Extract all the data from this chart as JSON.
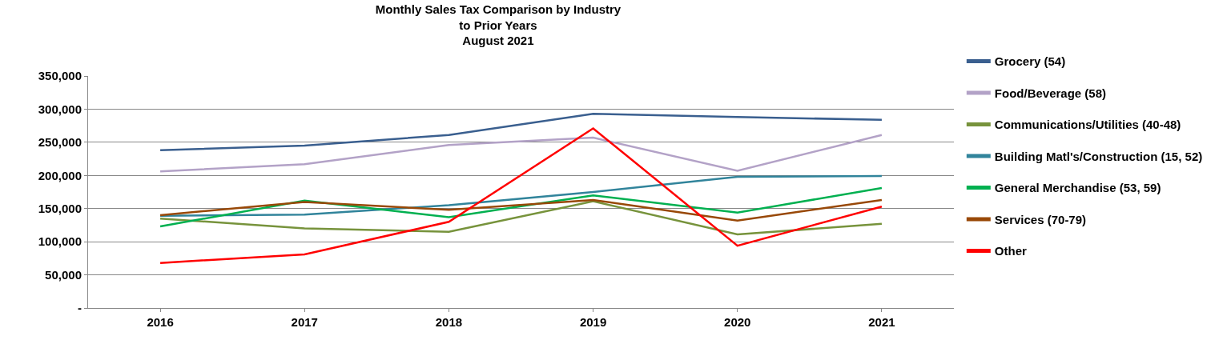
{
  "chart_data": {
    "type": "line",
    "title": "Monthly Sales Tax Comparison by Industry\nto Prior Years\nAugust 2021",
    "categories": [
      "2016",
      "2017",
      "2018",
      "2019",
      "2020",
      "2021"
    ],
    "series": [
      {
        "name": "Grocery (54)",
        "color": "#3a5f8f",
        "values": [
          238000,
          245000,
          261000,
          293000,
          288000,
          284000
        ]
      },
      {
        "name": "Food/Beverage (58)",
        "color": "#b3a2c7",
        "values": [
          206000,
          217000,
          246000,
          257000,
          207000,
          261000
        ]
      },
      {
        "name": "Communications/Utilities (40-48)",
        "color": "#77933c",
        "values": [
          135000,
          120000,
          115000,
          161000,
          111000,
          127000
        ]
      },
      {
        "name": "Building Matl's/Construction (15, 52)",
        "color": "#31849b",
        "values": [
          139000,
          141000,
          155000,
          175000,
          198000,
          199000
        ]
      },
      {
        "name": "General Merchandise (53, 59)",
        "color": "#00b050",
        "values": [
          123000,
          162000,
          137000,
          170000,
          144000,
          181000
        ]
      },
      {
        "name": "Services (70-79)",
        "color": "#984807",
        "values": [
          140000,
          160000,
          148000,
          163000,
          132000,
          163000
        ]
      },
      {
        "name": "Other",
        "color": "#ff0000",
        "values": [
          68000,
          81000,
          130000,
          271000,
          94000,
          153000
        ]
      }
    ],
    "ylim": [
      0,
      350000
    ],
    "yticks": [
      {
        "value": 0,
        "label": "-"
      },
      {
        "value": 50000,
        "label": "50,000"
      },
      {
        "value": 100000,
        "label": "100,000"
      },
      {
        "value": 150000,
        "label": "150,000"
      },
      {
        "value": 200000,
        "label": "200,000"
      },
      {
        "value": 250000,
        "label": "250,000"
      },
      {
        "value": 300000,
        "label": "300,000"
      },
      {
        "value": 350000,
        "label": "350,000"
      }
    ],
    "grid": "y",
    "legend": "right",
    "marker": "none",
    "line_style": "solid"
  }
}
